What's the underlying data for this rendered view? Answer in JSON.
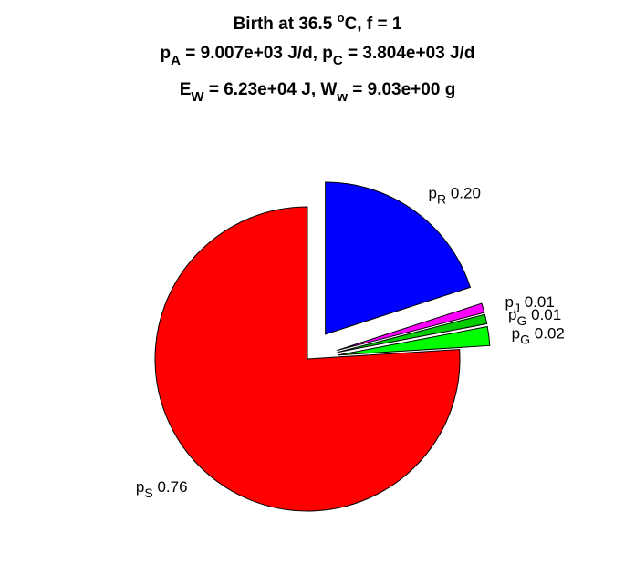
{
  "chart_data": {
    "type": "pie",
    "title": [
      [
        "Birth at 36.5 ",
        "o",
        "C, f = 1"
      ],
      [
        "p",
        "A",
        " = 9.007e+03 J/d, p",
        "C",
        " = 3.804e+03 J/d"
      ],
      [
        "E",
        "W",
        " = 6.23e+04 J, W",
        "w",
        " = 9.03e+00 g"
      ]
    ],
    "categories": [
      [
        "p",
        "R"
      ],
      [
        "p",
        "J"
      ],
      [
        "p",
        "G"
      ],
      [
        "p",
        "G"
      ],
      [
        "p",
        "S"
      ]
    ],
    "values": [
      0.2,
      0.01,
      0.01,
      0.02,
      0.76
    ],
    "value_labels": [
      "0.20",
      "0.01",
      "0.01",
      "0.02",
      "0.76"
    ],
    "colors": [
      "#0000ff",
      "#ff00ff",
      "#00cc00",
      "#00ff00",
      "#ff0000"
    ],
    "explode": [
      true,
      true,
      true,
      true,
      false
    ]
  }
}
